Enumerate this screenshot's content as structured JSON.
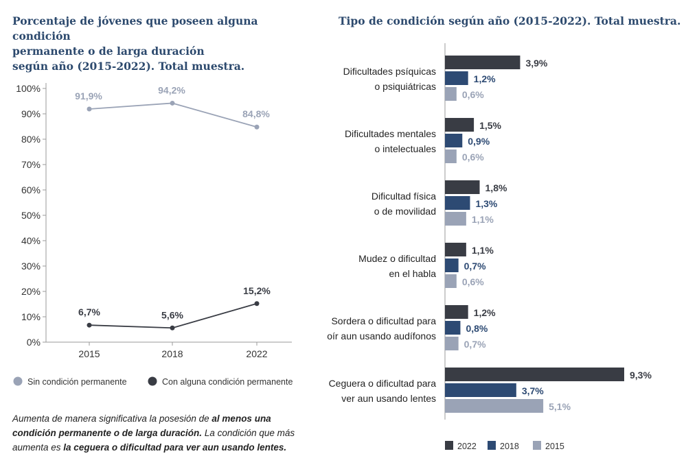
{
  "left_title": [
    "Porcentaje de jóvenes que poseen alguna condición",
    "permanente o de larga duración",
    "según año (2015-2022). Total muestra."
  ],
  "right_title": "Tipo de condición según año (2015-2022). Total muestra.",
  "note": {
    "p1": "Aumenta de manera significativa la posesión de ",
    "b1": "al menos una condición permanente o de larga duración.",
    "p2": " La condición que más aumenta es ",
    "b2": "la ceguera o dificultad para ver aun usando lentes."
  },
  "colors": {
    "light": "#9aa3b6",
    "dark": "#393c44",
    "mid": "#2d4a73",
    "title": "#2d4a6e"
  },
  "chart_data": [
    {
      "type": "line",
      "x": [
        "2015",
        "2018",
        "2022"
      ],
      "yticks": [
        "0%",
        "10%",
        "20%",
        "30%",
        "40%",
        "50%",
        "60%",
        "70%",
        "80%",
        "90%",
        "100%"
      ],
      "ylim": [
        0,
        100
      ],
      "series": [
        {
          "name": "Sin condición permanente",
          "values": [
            91.9,
            94.2,
            84.8
          ],
          "labels": [
            "91,9%",
            "94,2%",
            "84,8%"
          ],
          "color": "#9aa3b6"
        },
        {
          "name": "Con alguna condición permanente",
          "values": [
            6.7,
            5.6,
            15.2
          ],
          "labels": [
            "6,7%",
            "5,6%",
            "15,2%"
          ],
          "color": "#393c44"
        }
      ]
    },
    {
      "type": "bar",
      "orientation": "horizontal",
      "categories": [
        [
          "Dificultades psíquicas",
          "o psiquiátricas"
        ],
        [
          "Dificultades mentales",
          "o intelectuales"
        ],
        [
          "Dificultad física",
          "o de movilidad"
        ],
        [
          "Mudez o dificultad",
          "en el habla"
        ],
        [
          "Sordera o dificultad para",
          "oír aun usando audífonos"
        ],
        [
          "Ceguera o dificultad para",
          "ver aun usando lentes"
        ]
      ],
      "series": [
        {
          "name": "2022",
          "values": [
            3.9,
            1.5,
            1.8,
            1.1,
            1.2,
            9.3
          ],
          "labels": [
            "3,9%",
            "1,5%",
            "1,8%",
            "1,1%",
            "1,2%",
            "9,3%"
          ],
          "color": "#393c44"
        },
        {
          "name": "2018",
          "values": [
            1.2,
            0.9,
            1.3,
            0.7,
            0.8,
            3.7
          ],
          "labels": [
            "1,2%",
            "0,9%",
            "1,3%",
            "0,7%",
            "0,8%",
            "3,7%"
          ],
          "color": "#2d4a73"
        },
        {
          "name": "2015",
          "values": [
            0.6,
            0.6,
            1.1,
            0.6,
            0.7,
            5.1
          ],
          "labels": [
            "0,6%",
            "0,6%",
            "1,1%",
            "0,6%",
            "0,7%",
            "5,1%"
          ],
          "color": "#9aa3b6"
        }
      ],
      "xlim": [
        0,
        10
      ]
    }
  ]
}
